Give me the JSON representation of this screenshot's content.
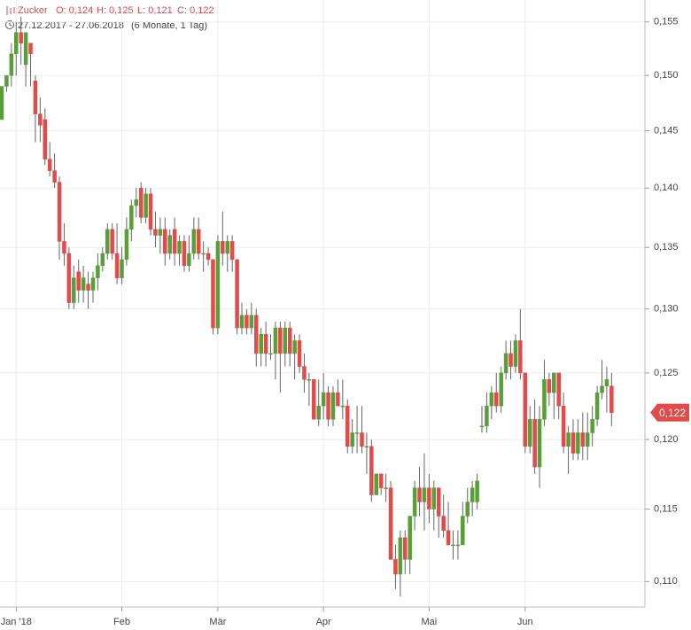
{
  "chart_data": {
    "type": "candlestick",
    "title": "Zucker",
    "ohlc_text": {
      "open": "O: 0,124",
      "high": "H: 0,125",
      "low": "L: 0,121",
      "close": "C: 0,122"
    },
    "date_range": "27.12.2017 - 27.06.2018",
    "period": "(6 Monate, 1 Tag)",
    "log_scale": true,
    "grid": true,
    "up_color": "#5a9e3a",
    "down_color": "#e04b4b",
    "ylim": [
      0.1083,
      0.1571
    ],
    "yticks": [
      {
        "value": 0.11,
        "label": "0,110"
      },
      {
        "value": 0.115,
        "label": "0,115"
      },
      {
        "value": 0.12,
        "label": "0,120"
      },
      {
        "value": 0.125,
        "label": "0,125"
      },
      {
        "value": 0.13,
        "label": "0,130"
      },
      {
        "value": 0.135,
        "label": "0,135"
      },
      {
        "value": 0.14,
        "label": "0,140"
      },
      {
        "value": 0.145,
        "label": "0,145"
      },
      {
        "value": 0.15,
        "label": "0,150"
      },
      {
        "value": 0.155,
        "label": "0,155"
      }
    ],
    "last_price": {
      "value": 0.122,
      "label": "0,122"
    },
    "categories": [
      null,
      null,
      null,
      "Jan '18",
      null,
      null,
      null,
      null,
      null,
      null,
      null,
      null,
      null,
      null,
      null,
      null,
      null,
      null,
      null,
      null,
      null,
      null,
      null,
      null,
      null,
      "Feb",
      null,
      null,
      null,
      null,
      null,
      null,
      null,
      null,
      null,
      null,
      null,
      null,
      null,
      null,
      null,
      null,
      null,
      null,
      null,
      "Mär",
      null,
      null,
      null,
      null,
      null,
      null,
      null,
      null,
      null,
      null,
      null,
      null,
      null,
      null,
      null,
      null,
      null,
      null,
      null,
      null,
      null,
      "Apr",
      null,
      null,
      null,
      null,
      null,
      null,
      null,
      null,
      null,
      null,
      null,
      null,
      null,
      null,
      null,
      null,
      null,
      null,
      null,
      null,
      null,
      "Mai",
      null,
      null,
      null,
      null,
      null,
      null,
      null,
      null,
      null,
      null,
      null,
      null,
      null,
      null,
      null,
      null,
      null,
      null,
      null,
      "Jun",
      null,
      null,
      null,
      null,
      null,
      null,
      null,
      null,
      null,
      null,
      null,
      null,
      null,
      null,
      null,
      null,
      null,
      null
    ],
    "open": [
      0.146,
      0.149,
      0.15,
      0.152,
      0.154,
      0.151,
      0.153,
      0.1495,
      0.1465,
      0.146,
      0.1425,
      0.1415,
      0.1405,
      0.1355,
      0.1345,
      0.1305,
      0.133,
      0.1315,
      0.132,
      0.1315,
      0.1325,
      0.1335,
      0.1345,
      0.1365,
      0.1345,
      0.1325,
      0.134,
      0.1365,
      0.1385,
      0.14,
      0.1375,
      0.1395,
      0.1365,
      0.136,
      0.1365,
      0.1345,
      0.1365,
      0.1345,
      0.1355,
      0.1335,
      0.1345,
      0.1365,
      0.1345,
      0.1345,
      0.134,
      0.1285,
      0.1355,
      0.1345,
      0.1355,
      0.134,
      0.1285,
      0.1295,
      0.1285,
      0.1295,
      0.1265,
      0.128,
      0.1265,
      0.1265,
      0.1285,
      0.1265,
      0.1285,
      0.1265,
      0.1275,
      0.1255,
      0.1245,
      0.1245,
      0.1215,
      0.1225,
      0.1235,
      0.1215,
      0.1235,
      0.1225,
      0.1225,
      0.1195,
      0.1205,
      0.1205,
      0.1195,
      0.1195,
      0.116,
      0.1175,
      0.1165,
      0.1165,
      0.1115,
      0.1105,
      0.113,
      0.1115,
      0.1145,
      0.1165,
      0.1155,
      0.1165,
      0.115,
      0.1165,
      0.1145,
      0.1135,
      0.1125,
      0.1125,
      0.1125,
      0.1145,
      0.1155,
      0.1155,
      0.121,
      0.121,
      0.1225,
      0.1235,
      0.1225,
      0.125,
      0.1265,
      0.1255,
      0.1275,
      0.125,
      0.1195,
      0.1215,
      0.118,
      0.1215,
      0.1245,
      0.1235,
      0.125,
      0.1225,
      0.1195,
      0.1205,
      0.119,
      0.1205,
      0.1195,
      0.1205,
      0.1215,
      0.1235,
      0.124,
      0.124
    ],
    "high": [
      0.149,
      0.15,
      0.153,
      0.155,
      0.1555,
      0.154,
      0.153,
      0.15,
      0.148,
      0.147,
      0.144,
      0.143,
      0.141,
      0.137,
      0.135,
      0.1335,
      0.134,
      0.1335,
      0.133,
      0.133,
      0.1345,
      0.135,
      0.137,
      0.137,
      0.137,
      0.135,
      0.1375,
      0.139,
      0.14,
      0.1405,
      0.14,
      0.14,
      0.138,
      0.1375,
      0.1375,
      0.1365,
      0.1375,
      0.136,
      0.136,
      0.136,
      0.1375,
      0.1375,
      0.1355,
      0.135,
      0.134,
      0.136,
      0.138,
      0.136,
      0.136,
      0.134,
      0.1305,
      0.13,
      0.1305,
      0.13,
      0.1285,
      0.129,
      0.128,
      0.129,
      0.129,
      0.129,
      0.129,
      0.128,
      0.128,
      0.1265,
      0.125,
      0.1245,
      0.1245,
      0.125,
      0.124,
      0.124,
      0.1245,
      0.1245,
      0.123,
      0.1215,
      0.1225,
      0.1225,
      0.1205,
      0.12,
      0.1175,
      0.1175,
      0.1175,
      0.117,
      0.1125,
      0.1135,
      0.1135,
      0.1145,
      0.117,
      0.118,
      0.119,
      0.1175,
      0.117,
      0.1165,
      0.116,
      0.1155,
      0.1135,
      0.1135,
      0.1155,
      0.1165,
      0.117,
      0.1175,
      0.1225,
      0.1235,
      0.124,
      0.125,
      0.1255,
      0.1275,
      0.1275,
      0.128,
      0.13,
      0.125,
      0.1225,
      0.123,
      0.1225,
      0.126,
      0.125,
      0.125,
      0.125,
      0.1235,
      0.121,
      0.1215,
      0.1215,
      0.122,
      0.122,
      0.1225,
      0.124,
      0.126,
      0.1255,
      0.125
    ],
    "low": [
      0.146,
      0.1485,
      0.149,
      0.15,
      0.151,
      0.149,
      0.149,
      0.144,
      0.144,
      0.142,
      0.141,
      0.14,
      0.134,
      0.1335,
      0.13,
      0.13,
      0.1305,
      0.1305,
      0.13,
      0.1305,
      0.1315,
      0.133,
      0.134,
      0.134,
      0.132,
      0.132,
      0.1335,
      0.1355,
      0.1375,
      0.137,
      0.137,
      0.136,
      0.135,
      0.1345,
      0.1335,
      0.134,
      0.1335,
      0.1335,
      0.133,
      0.133,
      0.134,
      0.134,
      0.133,
      0.1335,
      0.128,
      0.128,
      0.1335,
      0.133,
      0.133,
      0.128,
      0.128,
      0.128,
      0.128,
      0.1255,
      0.1255,
      0.1255,
      0.126,
      0.1245,
      0.1235,
      0.1255,
      0.1255,
      0.1245,
      0.125,
      0.1235,
      0.1225,
      0.1215,
      0.121,
      0.1215,
      0.121,
      0.121,
      0.1225,
      0.1215,
      0.119,
      0.119,
      0.119,
      0.119,
      0.1175,
      0.1155,
      0.116,
      0.116,
      0.1155,
      0.1115,
      0.1095,
      0.109,
      0.1105,
      0.1105,
      0.1135,
      0.1145,
      0.1135,
      0.114,
      0.1135,
      0.113,
      0.113,
      0.1125,
      0.1115,
      0.1115,
      0.1125,
      0.114,
      0.1145,
      0.115,
      0.1205,
      0.1205,
      0.1215,
      0.122,
      0.122,
      0.1245,
      0.1245,
      0.125,
      0.1245,
      0.119,
      0.119,
      0.1175,
      0.1165,
      0.121,
      0.1225,
      0.1215,
      0.1215,
      0.119,
      0.1175,
      0.1185,
      0.1185,
      0.1185,
      0.1185,
      0.1195,
      0.121,
      0.123,
      0.122,
      0.121
    ],
    "close": [
      0.149,
      0.15,
      0.152,
      0.154,
      0.153,
      0.154,
      0.152,
      0.1465,
      0.1455,
      0.1425,
      0.1415,
      0.1405,
      0.1355,
      0.1345,
      0.1305,
      0.1325,
      0.1315,
      0.1325,
      0.1315,
      0.1325,
      0.1335,
      0.1345,
      0.1365,
      0.1345,
      0.1325,
      0.134,
      0.1365,
      0.1385,
      0.139,
      0.1375,
      0.1395,
      0.1365,
      0.136,
      0.1365,
      0.1345,
      0.136,
      0.1345,
      0.1355,
      0.1335,
      0.1345,
      0.1365,
      0.1345,
      0.1345,
      0.134,
      0.1285,
      0.1355,
      0.1345,
      0.1355,
      0.134,
      0.1285,
      0.1295,
      0.1285,
      0.1295,
      0.1265,
      0.128,
      0.1265,
      0.1265,
      0.1285,
      0.1265,
      0.1285,
      0.1265,
      0.1275,
      0.1255,
      0.1245,
      0.1245,
      0.1215,
      0.1225,
      0.1235,
      0.1215,
      0.1235,
      0.1225,
      0.1225,
      0.1195,
      0.1205,
      0.1205,
      0.1195,
      0.1195,
      0.116,
      0.1175,
      0.1165,
      0.1165,
      0.1115,
      0.1105,
      0.113,
      0.1115,
      0.1145,
      0.1165,
      0.1155,
      0.1165,
      0.115,
      0.1165,
      0.1145,
      0.1135,
      0.1125,
      0.1125,
      0.1125,
      0.1145,
      0.1155,
      0.1165,
      0.117,
      0.121,
      0.1225,
      0.1235,
      0.1225,
      0.125,
      0.1265,
      0.1255,
      0.1275,
      0.125,
      0.1195,
      0.1215,
      0.118,
      0.1215,
      0.1245,
      0.1235,
      0.125,
      0.1225,
      0.1195,
      0.1205,
      0.119,
      0.1205,
      0.1195,
      0.1205,
      0.1215,
      0.1235,
      0.124,
      0.1245,
      0.122
    ]
  }
}
